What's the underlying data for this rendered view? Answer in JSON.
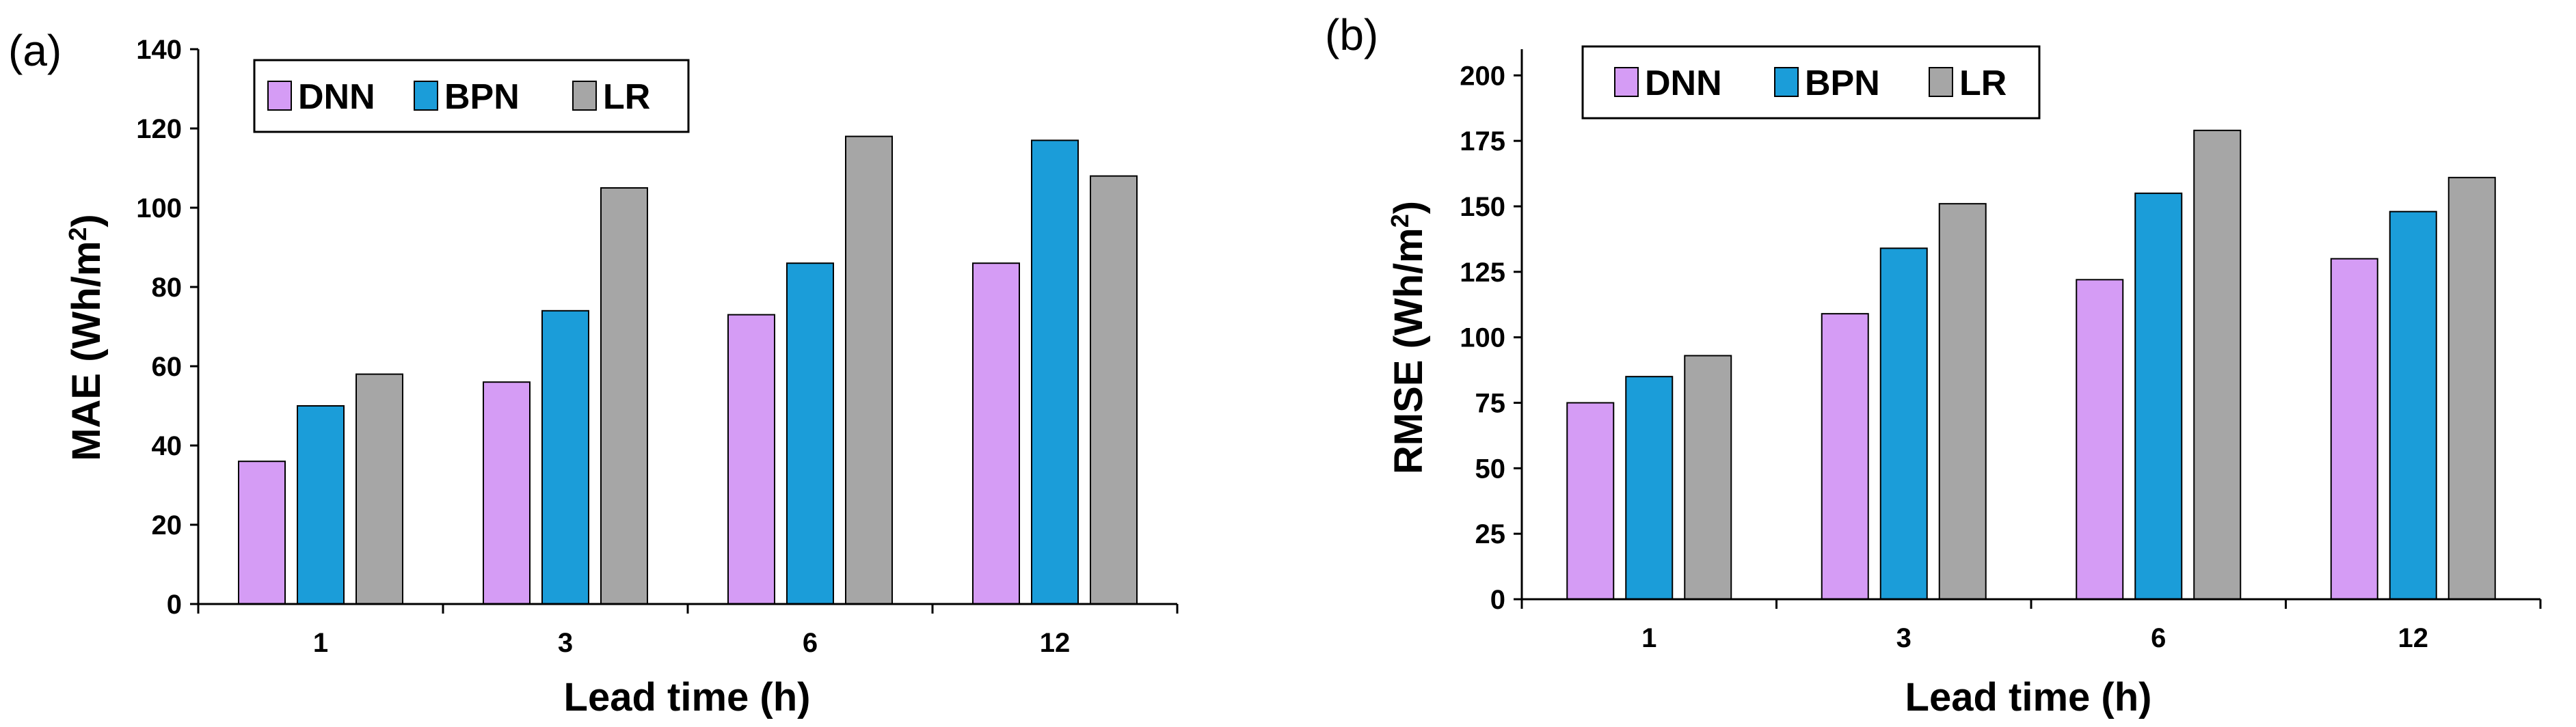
{
  "colors": {
    "DNN": "#d59cf5",
    "BPN": "#1b9dd9",
    "LR": "#a6a6a6"
  },
  "chart_data": [
    {
      "type": "bar",
      "panel": "(a)",
      "categories": [
        "1",
        "3",
        "6",
        "12"
      ],
      "series": [
        {
          "name": "DNN",
          "values": [
            36,
            56,
            73,
            86
          ]
        },
        {
          "name": "BPN",
          "values": [
            50,
            74,
            86,
            117
          ]
        },
        {
          "name": "LR",
          "values": [
            58,
            105,
            118,
            108
          ]
        }
      ],
      "xlabel": "Lead time (h)",
      "ylabel_main": "MAE (Wh/m",
      "ylabel_sup": "2",
      "ylabel_end": ")",
      "ylim": [
        0,
        140
      ],
      "yticks": [
        "0",
        "20",
        "40",
        "60",
        "80",
        "100",
        "120",
        "140"
      ],
      "legend": "top-left",
      "grid": false
    },
    {
      "type": "bar",
      "panel": "(b)",
      "categories": [
        "1",
        "3",
        "6",
        "12"
      ],
      "series": [
        {
          "name": "DNN",
          "values": [
            75,
            109,
            122,
            130
          ]
        },
        {
          "name": "BPN",
          "values": [
            85,
            134,
            155,
            148
          ]
        },
        {
          "name": "LR",
          "values": [
            93,
            151,
            179,
            161
          ]
        }
      ],
      "xlabel": "Lead time (h)",
      "ylabel_main": "RMSE (Wh/m",
      "ylabel_sup": "2",
      "ylabel_end": ")",
      "ylim": [
        0,
        210
      ],
      "yticks": [
        "0",
        "25",
        "50",
        "75",
        "100",
        "125",
        "150",
        "175",
        "200"
      ],
      "legend": "top-left",
      "grid": false
    }
  ]
}
